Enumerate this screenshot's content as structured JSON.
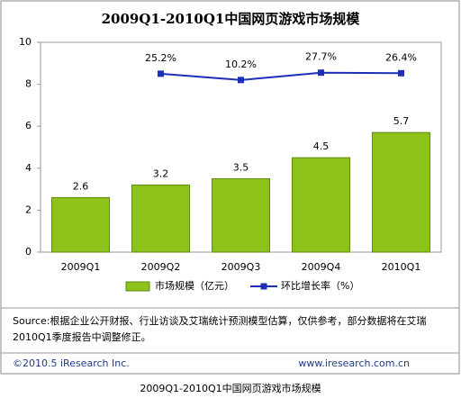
{
  "chart_data": {
    "type": "bar",
    "title": "2009Q1-2010Q1中国网页游戏市场规模",
    "categories": [
      "2009Q1",
      "2009Q2",
      "2009Q3",
      "2009Q4",
      "2010Q1"
    ],
    "series": [
      {
        "name": "市场规模（亿元）",
        "type": "bar",
        "color": "#8cc21a",
        "values": [
          2.6,
          3.2,
          3.5,
          4.5,
          5.7
        ]
      },
      {
        "name": "环比增长率（%）",
        "type": "line",
        "axis": "y2",
        "color": "#1c2fb8",
        "values": [
          null,
          25.2,
          10.2,
          27.7,
          26.4
        ],
        "value_labels": [
          null,
          "25.2%",
          "10.2%",
          "27.7%",
          "26.4%"
        ]
      }
    ],
    "ylim": [
      0,
      10
    ],
    "yticks": [
      0,
      2,
      4,
      6,
      8,
      10
    ],
    "y2lim": [
      -400,
      100
    ],
    "grid": false,
    "legend": "bottom",
    "source": [
      "Source:根据企业公开财报、行业访谈及艾瑞统计预测模型估算，仅供参考，部分数据将在艾瑞",
      "2010Q1季度报告中调整修正。"
    ],
    "copyright": "©2010.5 iResearch Inc.",
    "website": "www.iresearch.com.cn",
    "caption": "2009Q1-2010Q1中国网页游戏市场规模"
  }
}
